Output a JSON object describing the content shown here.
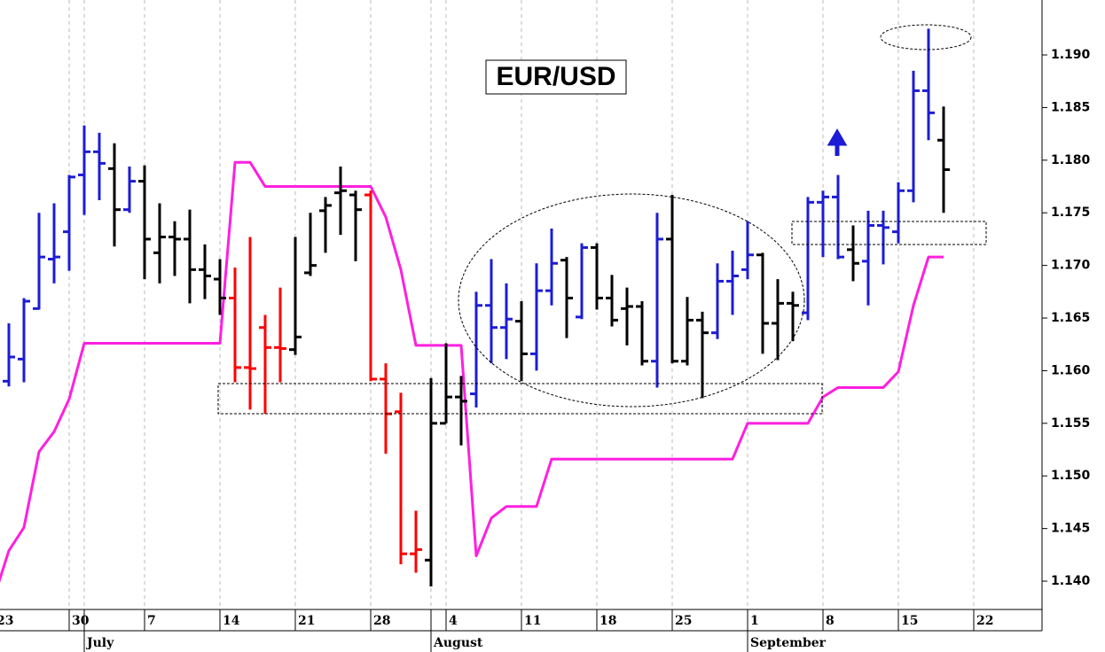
{
  "chart_data": {
    "type": "ohlc",
    "title": "EUR/USD",
    "xlim": [
      0.412,
      69.53
    ],
    "ylim": [
      1.13731,
      1.19522
    ],
    "grid": true,
    "yticks": [
      {
        "value": 1.14,
        "label": "1.140"
      },
      {
        "value": 1.145,
        "label": "1.145"
      },
      {
        "value": 1.15,
        "label": "1.150"
      },
      {
        "value": 1.155,
        "label": "1.155"
      },
      {
        "value": 1.16,
        "label": "1.160"
      },
      {
        "value": 1.165,
        "label": "1.165"
      },
      {
        "value": 1.17,
        "label": "1.170"
      },
      {
        "value": 1.175,
        "label": "1.175"
      },
      {
        "value": 1.18,
        "label": "1.180"
      },
      {
        "value": 1.185,
        "label": "1.185"
      },
      {
        "value": 1.19,
        "label": "1.190"
      }
    ],
    "xticks": [
      {
        "value": 0,
        "label": "23"
      },
      {
        "value": 5,
        "label": "30"
      },
      {
        "value": 10,
        "label": "7"
      },
      {
        "value": 15,
        "label": "14"
      },
      {
        "value": 20,
        "label": "21"
      },
      {
        "value": 25,
        "label": "28"
      },
      {
        "value": 30,
        "label": "4"
      },
      {
        "value": 35,
        "label": "11"
      },
      {
        "value": 40,
        "label": "18"
      },
      {
        "value": 45,
        "label": "25"
      },
      {
        "value": 50,
        "label": "1"
      },
      {
        "value": 55,
        "label": "8"
      },
      {
        "value": 60,
        "label": "15"
      },
      {
        "value": 65,
        "label": "22"
      }
    ],
    "months": [
      {
        "value": 6,
        "label": "July"
      },
      {
        "value": 29,
        "label": "August"
      },
      {
        "value": 50,
        "label": "September"
      }
    ],
    "series": [
      {
        "type": "ohlc",
        "x": [
          1,
          2,
          3,
          4,
          5,
          6,
          7,
          8,
          9,
          10,
          11,
          12,
          13,
          14,
          15,
          16,
          17,
          18,
          19,
          20,
          21,
          22,
          23,
          24,
          25,
          26,
          27,
          28,
          29,
          30,
          31,
          32,
          33,
          34,
          35,
          36,
          37,
          38,
          39,
          40,
          41,
          42,
          43,
          44,
          45,
          46,
          47,
          48,
          49,
          50,
          51,
          52,
          53,
          54,
          55,
          56,
          57,
          58,
          59,
          60,
          61,
          62,
          63
        ],
        "open": [
          1.159,
          1.1611,
          1.1659,
          1.1706,
          1.1732,
          1.1786,
          1.1808,
          1.1792,
          1.1753,
          1.178,
          1.1712,
          1.1727,
          1.1725,
          1.1696,
          1.1687,
          1.1669,
          1.1603,
          1.1641,
          1.1622,
          1.162,
          1.1693,
          1.1752,
          1.1769,
          1.1767,
          1.1767,
          1.1592,
          1.1561,
          1.1426,
          1.142,
          1.155,
          1.1575,
          1.1578,
          1.1662,
          1.1641,
          1.1647,
          1.1616,
          1.1676,
          1.1705,
          1.1651,
          1.1717,
          1.1669,
          1.1659,
          1.1661,
          1.1609,
          1.1725,
          1.1609,
          1.1648,
          1.1636,
          1.1685,
          1.1696,
          1.171,
          1.1645,
          1.1664,
          1.1655,
          1.176,
          1.1765,
          1.1715,
          1.1704,
          1.1738,
          1.1732,
          1.1771,
          1.1866,
          1.1819
        ],
        "high": [
          1.1645,
          1.1669,
          1.175,
          1.1759,
          1.1786,
          1.1833,
          1.1826,
          1.1816,
          1.1794,
          1.1795,
          1.1759,
          1.1742,
          1.1753,
          1.172,
          1.1706,
          1.1698,
          1.1727,
          1.1653,
          1.1679,
          1.1727,
          1.175,
          1.1765,
          1.1794,
          1.1771,
          1.1771,
          1.1607,
          1.1579,
          1.1467,
          1.1593,
          1.1626,
          1.1595,
          1.1675,
          1.1706,
          1.1683,
          1.1666,
          1.1702,
          1.1735,
          1.1708,
          1.1721,
          1.1721,
          1.1691,
          1.1679,
          1.1666,
          1.175,
          1.1767,
          1.167,
          1.1656,
          1.1702,
          1.1714,
          1.1742,
          1.1712,
          1.1687,
          1.1675,
          1.1765,
          1.1771,
          1.1786,
          1.1738,
          1.1752,
          1.1752,
          1.1779,
          1.1885,
          1.1925,
          1.1851
        ],
        "low": [
          1.1585,
          1.1589,
          1.1658,
          1.1683,
          1.1695,
          1.1748,
          1.1762,
          1.1718,
          1.175,
          1.1687,
          1.1683,
          1.169,
          1.1664,
          1.1668,
          1.1653,
          1.1589,
          1.1563,
          1.1559,
          1.1589,
          1.1615,
          1.169,
          1.1712,
          1.1729,
          1.1704,
          1.159,
          1.1521,
          1.1416,
          1.1408,
          1.1395,
          1.155,
          1.1529,
          1.1565,
          1.1607,
          1.1611,
          1.159,
          1.16,
          1.1662,
          1.1631,
          1.1649,
          1.1658,
          1.1642,
          1.1624,
          1.1605,
          1.1584,
          1.1607,
          1.1605,
          1.1574,
          1.163,
          1.1653,
          1.1687,
          1.1616,
          1.161,
          1.1628,
          1.1648,
          1.1708,
          1.1706,
          1.1685,
          1.1662,
          1.1701,
          1.1721,
          1.176,
          1.1819,
          1.175
        ],
        "close": [
          1.1613,
          1.1666,
          1.1708,
          1.1708,
          1.1784,
          1.1808,
          1.1797,
          1.1753,
          1.178,
          1.1725,
          1.1727,
          1.1725,
          1.1696,
          1.169,
          1.1669,
          1.1603,
          1.1602,
          1.1622,
          1.1621,
          1.1632,
          1.17,
          1.1757,
          1.1771,
          1.1753,
          1.1592,
          1.1559,
          1.1426,
          1.143,
          1.155,
          1.1575,
          1.1571,
          1.1662,
          1.1641,
          1.1649,
          1.1616,
          1.1676,
          1.1702,
          1.1669,
          1.1717,
          1.1669,
          1.1648,
          1.1661,
          1.1609,
          1.1725,
          1.1609,
          1.1648,
          1.1636,
          1.1685,
          1.169,
          1.171,
          1.1645,
          1.1664,
          1.1662,
          1.176,
          1.1765,
          1.1708,
          1.1702,
          1.1738,
          1.1736,
          1.1771,
          1.1866,
          1.1845,
          1.1791
        ],
        "colors": [
          "#1c1cd6",
          "#1c1cd6",
          "#1c1cd6",
          "#1c1cd6",
          "#1c1cd6",
          "#1c1cd6",
          "#1c1cd6",
          "#000000",
          "#1c1cd6",
          "#000000",
          "#000000",
          "#000000",
          "#000000",
          "#000000",
          "#000000",
          "#ff0000",
          "#ff0000",
          "#ff0000",
          "#ff0000",
          "#000000",
          "#000000",
          "#000000",
          "#000000",
          "#000000",
          "#ff0000",
          "#ff0000",
          "#ff0000",
          "#ff0000",
          "#000000",
          "#000000",
          "#000000",
          "#1c1cd6",
          "#1c1cd6",
          "#1c1cd6",
          "#000000",
          "#1c1cd6",
          "#1c1cd6",
          "#000000",
          "#1c1cd6",
          "#000000",
          "#000000",
          "#000000",
          "#000000",
          "#1c1cd6",
          "#000000",
          "#000000",
          "#000000",
          "#1c1cd6",
          "#1c1cd6",
          "#1c1cd6",
          "#000000",
          "#000000",
          "#000000",
          "#1c1cd6",
          "#1c1cd6",
          "#1c1cd6",
          "#000000",
          "#1c1cd6",
          "#1c1cd6",
          "#1c1cd6",
          "#1c1cd6",
          "#1c1cd6",
          "#000000"
        ]
      },
      {
        "type": "line",
        "color": "#ff1fe0",
        "x": [
          0,
          1,
          2,
          3,
          4,
          5,
          6,
          7,
          8,
          9,
          10,
          11,
          12,
          13,
          14,
          15,
          16,
          17,
          18,
          19,
          20,
          21,
          22,
          23,
          24,
          25,
          26,
          27,
          28,
          29,
          30,
          31,
          32,
          33,
          34,
          35,
          36,
          37,
          38,
          39,
          40,
          41,
          42,
          43,
          44,
          45,
          46,
          47,
          48,
          49,
          50,
          51,
          52,
          53,
          54,
          55,
          56,
          57,
          58,
          59,
          60,
          61,
          62,
          63
        ],
        "values": [
          1.1384,
          1.1429,
          1.1451,
          1.1523,
          1.1542,
          1.1573,
          1.1626,
          1.1626,
          1.1626,
          1.1626,
          1.1626,
          1.1626,
          1.1626,
          1.1626,
          1.1626,
          1.1626,
          1.1798,
          1.1798,
          1.1775,
          1.1775,
          1.1775,
          1.1775,
          1.1775,
          1.1775,
          1.1775,
          1.1775,
          1.1746,
          1.1696,
          1.1624,
          1.1624,
          1.1624,
          1.1624,
          1.1424,
          1.146,
          1.1471,
          1.1471,
          1.1471,
          1.1516,
          1.1516,
          1.1516,
          1.1516,
          1.1516,
          1.1516,
          1.1516,
          1.1516,
          1.1516,
          1.1516,
          1.1516,
          1.1516,
          1.1516,
          1.155,
          1.155,
          1.155,
          1.155,
          1.155,
          1.1575,
          1.1584,
          1.1584,
          1.1584,
          1.1584,
          1.1599,
          1.1662,
          1.1708,
          1.1708
        ]
      }
    ]
  }
}
